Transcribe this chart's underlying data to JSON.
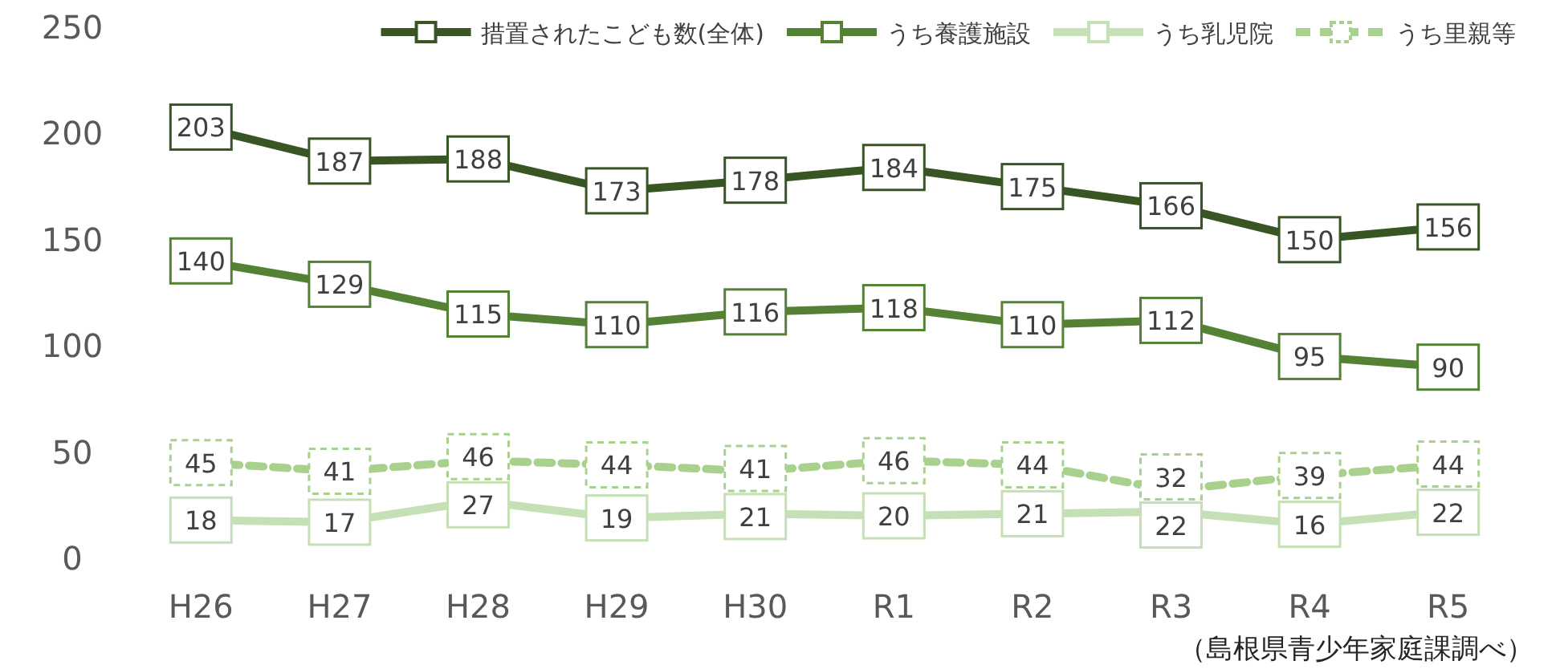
{
  "chart_data": {
    "type": "line",
    "categories": [
      "H26",
      "H27",
      "H28",
      "H29",
      "H30",
      "R1",
      "R2",
      "R3",
      "R4",
      "R5"
    ],
    "series": [
      {
        "name": "措置されたこども数(全体)",
        "color": "#375623",
        "values": [
          203,
          187,
          188,
          173,
          178,
          184,
          175,
          166,
          150,
          156
        ]
      },
      {
        "name": "うち養護施設",
        "color": "#548235",
        "values": [
          140,
          129,
          115,
          110,
          116,
          118,
          110,
          112,
          95,
          90
        ]
      },
      {
        "name": "うち乳児院",
        "color": "#c5e0b4",
        "values": [
          18,
          17,
          27,
          19,
          21,
          20,
          21,
          22,
          16,
          22
        ]
      },
      {
        "name": "うち里親等",
        "color": "#a9d18e",
        "values": [
          45,
          41,
          46,
          44,
          41,
          46,
          44,
          32,
          39,
          44
        ],
        "line_style": "dashed"
      }
    ],
    "ylim": [
      0,
      250
    ],
    "yticks": [
      0,
      50,
      100,
      150,
      200,
      250
    ],
    "marker": "square",
    "data_labels": true,
    "legend": "top",
    "annotations": [
      "（島根県青少年家庭課調べ）"
    ]
  }
}
